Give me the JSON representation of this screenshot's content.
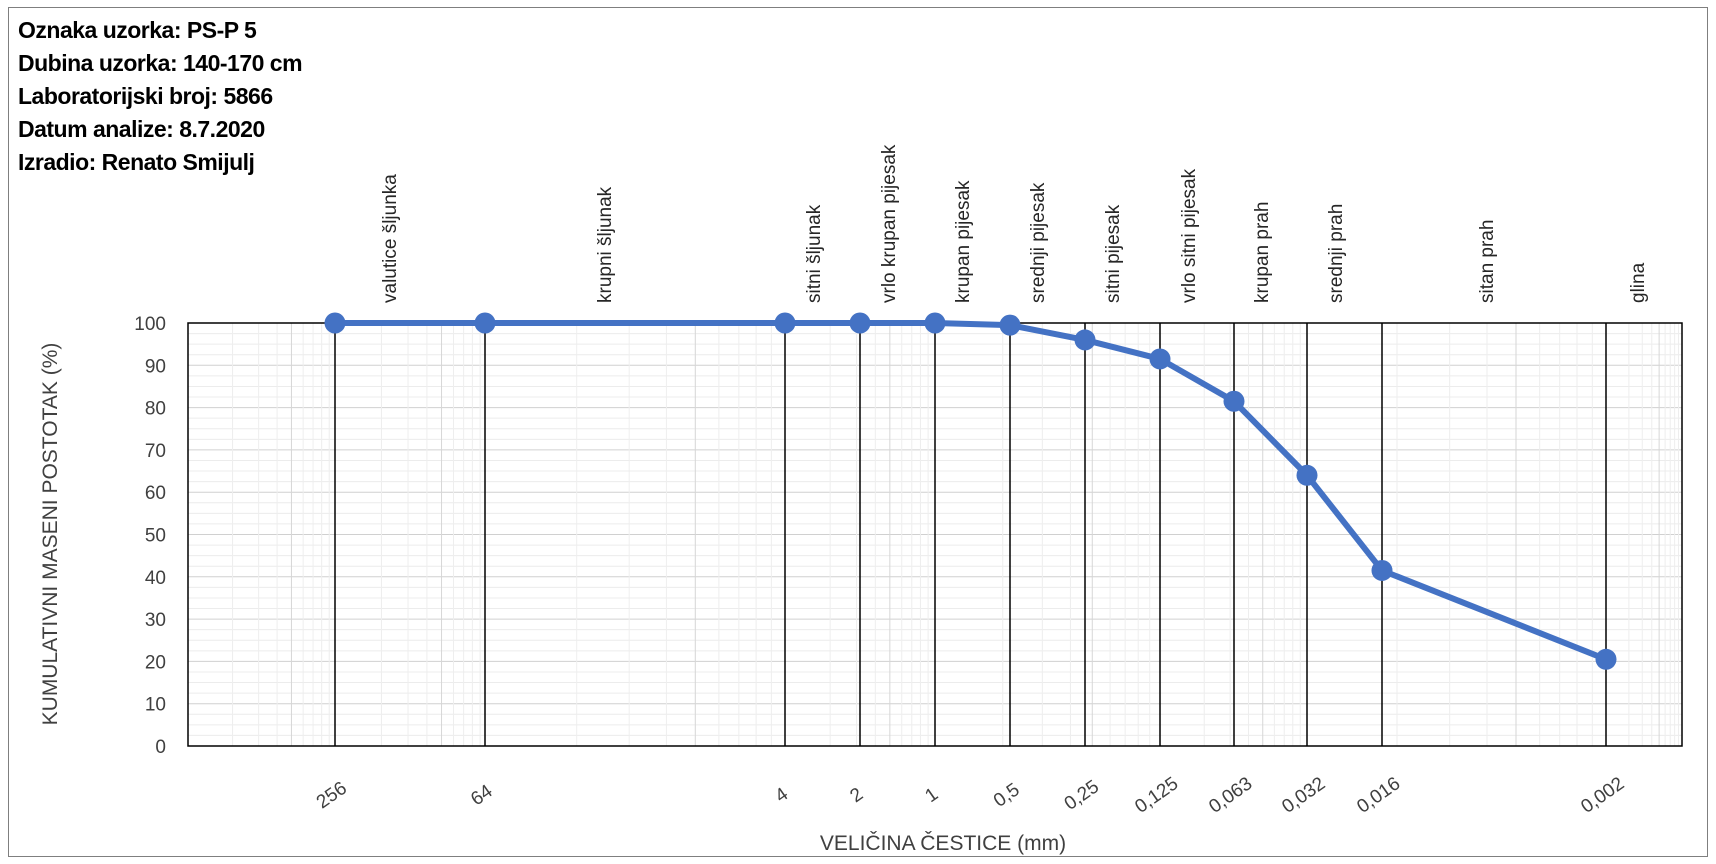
{
  "header": {
    "oznaka": "Oznaka uzorka:  PS-P 5",
    "dubina": "Dubina uzorka: 140-170 cm",
    "lab_broj": "Laboratorijski broj: 5866",
    "datum": "Datum analize: 8.7.2020",
    "izradio": "Izradio: Renato Smijulj"
  },
  "chart_data": {
    "type": "line",
    "title": "",
    "xlabel": "VELIČINA ČESTICE (mm)",
    "ylabel": "KUMULATIVNI  MASENI  POSTOTAK (%)",
    "ylim": [
      0,
      100
    ],
    "y_ticks": [
      0,
      10,
      20,
      30,
      40,
      50,
      60,
      70,
      80,
      90,
      100
    ],
    "x_scale": "log, reversed",
    "x_tick_labels": [
      "256",
      "64",
      "4",
      "2",
      "1",
      "0,5",
      "0,25",
      "0,125",
      "0,063",
      "0,032",
      "0,016",
      "0,002"
    ],
    "x": [
      256,
      64,
      4,
      2,
      1,
      0.5,
      0.25,
      0.125,
      0.063,
      0.032,
      0.016,
      0.002
    ],
    "series": [
      {
        "values": [
          100,
          100,
          100,
          100,
          100,
          99.5,
          96,
          91.5,
          81.5,
          64,
          41.5,
          20.5
        ]
      }
    ],
    "size_classes": [
      "valutice šljunka",
      "krupni šljunak",
      "sitni šljunak",
      "vrlo krupan pijesak",
      "krupan pijesak",
      "srednji pijesak",
      "sitni pijesak",
      "vrlo sitni pijesak",
      "krupan prah",
      "srednji prah",
      "sitan prah",
      "glina"
    ],
    "grid": true,
    "line_color": "#4472C4"
  }
}
